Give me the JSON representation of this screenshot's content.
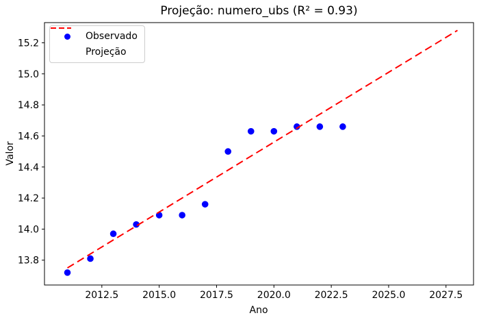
{
  "chart_data": {
    "type": "scatter",
    "title": "Projeção: numero_ubs (R² = 0.93)",
    "xlabel": "Ano",
    "ylabel": "Valor",
    "r_squared": 0.93,
    "xlim": [
      2010.0,
      2028.7
    ],
    "ylim": [
      13.64,
      15.33
    ],
    "xtick_values": [
      2012.5,
      2015.0,
      2017.5,
      2020.0,
      2022.5,
      2025.0,
      2027.5
    ],
    "xtick_labels": [
      "2012.5",
      "2015.0",
      "2017.5",
      "2020.0",
      "2022.5",
      "2025.0",
      "2027.5"
    ],
    "ytick_values": [
      13.8,
      14.0,
      14.2,
      14.4,
      14.6,
      14.8,
      15.0,
      15.2
    ],
    "ytick_labels": [
      "13.8",
      "14.0",
      "14.2",
      "14.4",
      "14.6",
      "14.8",
      "15.0",
      "15.2"
    ],
    "grid": false,
    "series": [
      {
        "name": "Observado",
        "kind": "scatter",
        "color": "#0000ff",
        "x": [
          2011,
          2012,
          2013,
          2014,
          2015,
          2016,
          2017,
          2018,
          2019,
          2020,
          2021,
          2022,
          2023
        ],
        "y": [
          13.72,
          13.81,
          13.97,
          14.03,
          14.09,
          14.09,
          14.16,
          14.5,
          14.63,
          14.63,
          14.66,
          14.66,
          14.66
        ]
      },
      {
        "name": "Projeção",
        "kind": "line",
        "style": "dashed",
        "color": "#ff0000",
        "x": [
          2011,
          2028
        ],
        "y": [
          13.75,
          15.28
        ]
      }
    ],
    "legend": {
      "position": "upper left",
      "entries": [
        {
          "label": "Observado",
          "marker": "dot",
          "color": "#0000ff"
        },
        {
          "label": "Projeção",
          "marker": "dashed-line",
          "color": "#ff0000"
        }
      ]
    }
  }
}
